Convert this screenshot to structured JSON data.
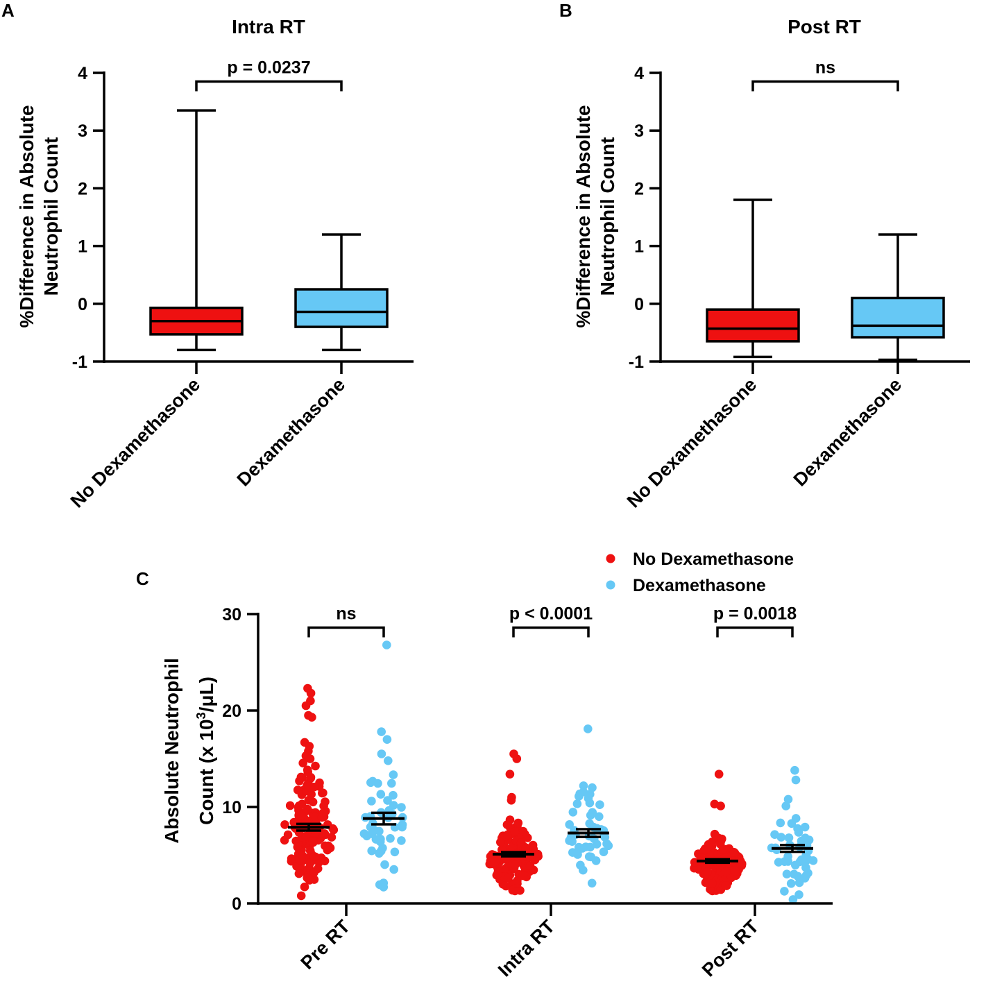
{
  "colors": {
    "no_dex": "#ee1111",
    "dex": "#66c8f5",
    "ink": "#000000"
  },
  "legend": {
    "no_dex": "No Dexamethasone",
    "dex": "Dexamethasone"
  },
  "chart_data": [
    {
      "panel": "A",
      "type": "box",
      "title": "Intra RT",
      "ylabel_line1": "%Difference in Absolute",
      "ylabel_line2": "Neutrophil Count",
      "ylim": [
        -1,
        4
      ],
      "yticks": [
        {
          "v": -1,
          "label": "-1"
        },
        {
          "v": 0,
          "label": "0"
        },
        {
          "v": 1,
          "label": "1"
        },
        {
          "v": 2,
          "label": "2"
        },
        {
          "v": 3,
          "label": "3"
        },
        {
          "v": 4,
          "label": "4"
        }
      ],
      "groups": [
        {
          "name": "No Dexamethasone",
          "color": "no_dex",
          "min": -0.8,
          "q1": -0.53,
          "median": -0.3,
          "q3": -0.07,
          "max": 3.35
        },
        {
          "name": "Dexamethasone",
          "color": "dex",
          "min": -0.8,
          "q1": -0.4,
          "median": -0.14,
          "q3": 0.25,
          "max": 1.2
        }
      ],
      "comparison": {
        "label": "p = 0.0237",
        "y": 3.85
      }
    },
    {
      "panel": "B",
      "type": "box",
      "title": "Post RT",
      "ylabel_line1": "%Difference in Absolute",
      "ylabel_line2": "Neutrophil Count",
      "ylim": [
        -1,
        4
      ],
      "yticks": [
        {
          "v": -1,
          "label": "-1"
        },
        {
          "v": 0,
          "label": "0"
        },
        {
          "v": 1,
          "label": "1"
        },
        {
          "v": 2,
          "label": "2"
        },
        {
          "v": 3,
          "label": "3"
        },
        {
          "v": 4,
          "label": "4"
        }
      ],
      "groups": [
        {
          "name": "No Dexamethasone",
          "color": "no_dex",
          "min": -0.92,
          "q1": -0.65,
          "median": -0.43,
          "q3": -0.1,
          "max": 1.8
        },
        {
          "name": "Dexamethasone",
          "color": "dex",
          "min": -0.97,
          "q1": -0.58,
          "median": -0.38,
          "q3": 0.1,
          "max": 1.2
        }
      ],
      "comparison": {
        "label": "ns",
        "y": 3.85
      }
    },
    {
      "panel": "C",
      "type": "scatter",
      "ylabel_line1": "Absolute Neutrophil",
      "ylabel_line2_pre": "Count (x 10",
      "ylabel_sup": "3",
      "ylabel_line2_post": "/μL)",
      "ylim": [
        0,
        30
      ],
      "yticks": [
        {
          "v": 0,
          "label": "0"
        },
        {
          "v": 10,
          "label": "10"
        },
        {
          "v": 20,
          "label": "20"
        },
        {
          "v": 30,
          "label": "30"
        }
      ],
      "categories": [
        "Pre RT",
        "Intra RT",
        "Post RT"
      ],
      "groups": [
        {
          "category": "Pre RT",
          "series": "No Dexamethasone",
          "color": "no_dex",
          "n": 150,
          "mean": 7.9,
          "sem": 0.35,
          "median": 7.3,
          "min": 0.8,
          "max": 22.3,
          "outliers": [
            22.3,
            21.8,
            21.0,
            20.5,
            19.5,
            19.3,
            16.7,
            16.3,
            15.8,
            15.3
          ]
        },
        {
          "category": "Pre RT",
          "series": "Dexamethasone",
          "color": "dex",
          "n": 48,
          "mean": 8.8,
          "sem": 0.6,
          "median": 8.4,
          "min": 1.7,
          "max": 26.8,
          "outliers": [
            26.8,
            17.8,
            17.0,
            15.5,
            14.8
          ]
        },
        {
          "category": "Intra RT",
          "series": "No Dexamethasone",
          "color": "no_dex",
          "n": 150,
          "mean": 5.1,
          "sem": 0.22,
          "median": 4.7,
          "min": 1.3,
          "max": 15.5,
          "outliers": [
            15.5,
            15.0,
            13.4,
            11.0,
            10.7
          ]
        },
        {
          "category": "Intra RT",
          "series": "Dexamethasone",
          "color": "dex",
          "n": 48,
          "mean": 7.3,
          "sem": 0.4,
          "median": 7.2,
          "min": 2.1,
          "max": 18.1,
          "outliers": [
            18.1,
            12.2,
            12.0
          ]
        },
        {
          "category": "Post RT",
          "series": "No Dexamethasone",
          "color": "no_dex",
          "n": 150,
          "mean": 4.4,
          "sem": 0.18,
          "median": 4.0,
          "min": 1.3,
          "max": 13.4,
          "outliers": [
            13.4,
            10.3,
            10.1
          ]
        },
        {
          "category": "Post RT",
          "series": "Dexamethasone",
          "color": "dex",
          "n": 48,
          "mean": 5.7,
          "sem": 0.35,
          "median": 5.4,
          "min": 0.4,
          "max": 13.8,
          "outliers": [
            13.8,
            12.8,
            10.8,
            10.1
          ]
        }
      ],
      "comparisons": [
        {
          "category": "Pre RT",
          "label": "ns",
          "y": 28.6
        },
        {
          "category": "Intra RT",
          "label": "p < 0.0001",
          "y": 28.6
        },
        {
          "category": "Post RT",
          "label": "p = 0.0018",
          "y": 28.6
        }
      ]
    }
  ]
}
